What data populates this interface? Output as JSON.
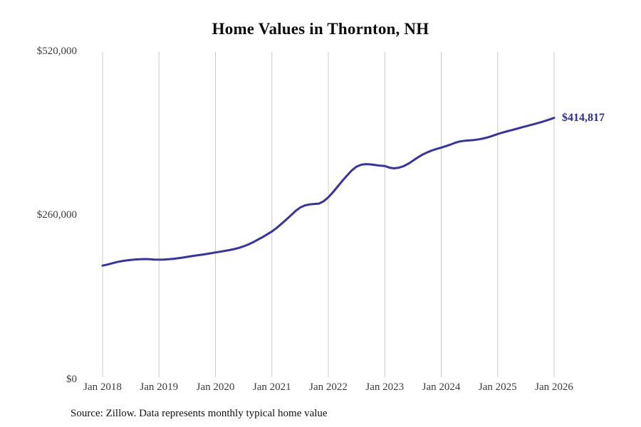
{
  "page": {
    "title": "Home Values in Thornton, NH",
    "source_note": "Source: Zillow. Data represents monthly typical home value",
    "end_value_label": "$414,817"
  },
  "chart_data": {
    "type": "line",
    "title": "Home Values in Thornton, NH",
    "xlabel": "",
    "ylabel": "",
    "ylim": [
      0,
      520000
    ],
    "grid": "vertical-only",
    "legend": "none",
    "x_tick_labels": [
      "Jan 2018",
      "Jan 2019",
      "Jan 2020",
      "Jan 2021",
      "Jan 2022",
      "Jan 2023",
      "Jan 2024",
      "Jan 2025",
      "Jan 2026"
    ],
    "y_ticks": [
      {
        "value": 0,
        "label": "$0"
      },
      {
        "value": 260000,
        "label": "$260,000"
      },
      {
        "value": 520000,
        "label": "$520,000"
      }
    ],
    "series": [
      {
        "name": "Monthly typical home value",
        "start": "Jan 2018",
        "frequency": "monthly",
        "values": [
          180500,
          182000,
          184000,
          186000,
          187500,
          188600,
          189500,
          190200,
          190600,
          190800,
          190500,
          190000,
          189800,
          190000,
          190500,
          191200,
          192100,
          193100,
          194300,
          195500,
          196600,
          197600,
          198700,
          200000,
          201300,
          202500,
          203800,
          205100,
          206600,
          208600,
          211000,
          214000,
          217500,
          221500,
          225500,
          230000,
          234600,
          240200,
          246500,
          253000,
          260000,
          267000,
          272500,
          276000,
          277500,
          278200,
          278800,
          282500,
          288800,
          297000,
          306000,
          315000,
          323500,
          331500,
          337500,
          340500,
          341500,
          341000,
          340000,
          339000,
          338400,
          335800,
          334800,
          335800,
          338200,
          342000,
          347000,
          352000,
          356500,
          360000,
          363000,
          365500,
          367700,
          370000,
          372500,
          375500,
          377500,
          378500,
          379200,
          379800,
          380800,
          382200,
          384200,
          386500,
          389200,
          391500,
          393500,
          395500,
          397500,
          399500,
          401500,
          403500,
          405500,
          407500,
          409800,
          412300,
          414817
        ]
      }
    ],
    "annotations": [
      {
        "text": "$414,817",
        "attach": "last-point"
      }
    ],
    "colors": {
      "line": "#3733a6",
      "annotation": "#2b2f8e",
      "gridline": "#cbcbcb",
      "title": "#0d0d0d",
      "tick_text": "#3c3c3c",
      "source_text": "#111111"
    }
  }
}
